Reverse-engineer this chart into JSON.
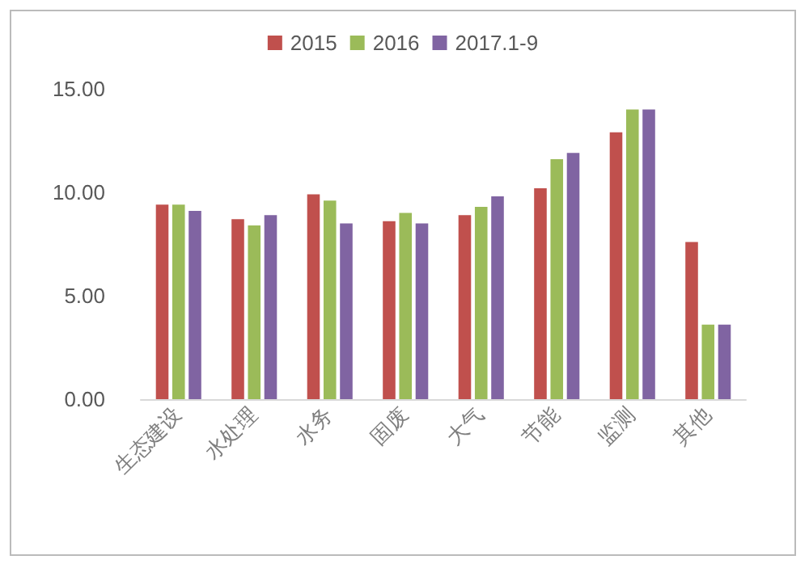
{
  "chart_data": {
    "type": "bar",
    "categories": [
      "生态建设",
      "水处理",
      "水务",
      "固废",
      "大气",
      "节能",
      "监测",
      "其他"
    ],
    "series": [
      {
        "name": "2015",
        "color": "#c0504d",
        "values": [
          9.4,
          8.7,
          9.9,
          8.6,
          8.9,
          10.2,
          12.9,
          7.6
        ]
      },
      {
        "name": "2016",
        "color": "#9bbb59",
        "values": [
          9.4,
          8.4,
          9.6,
          9.0,
          9.3,
          11.6,
          14.0,
          3.6
        ]
      },
      {
        "name": "2017.1-9",
        "color": "#8064a2",
        "values": [
          9.1,
          8.9,
          8.5,
          8.5,
          9.8,
          11.9,
          14.0,
          3.6
        ]
      }
    ],
    "ylim": [
      0,
      15
    ],
    "yticks": [
      {
        "value": 0,
        "label": "0.00"
      },
      {
        "value": 5,
        "label": "5.00"
      },
      {
        "value": 10,
        "label": "10.00"
      },
      {
        "value": 15,
        "label": "15.00"
      }
    ],
    "grid": false,
    "legend": "top"
  }
}
